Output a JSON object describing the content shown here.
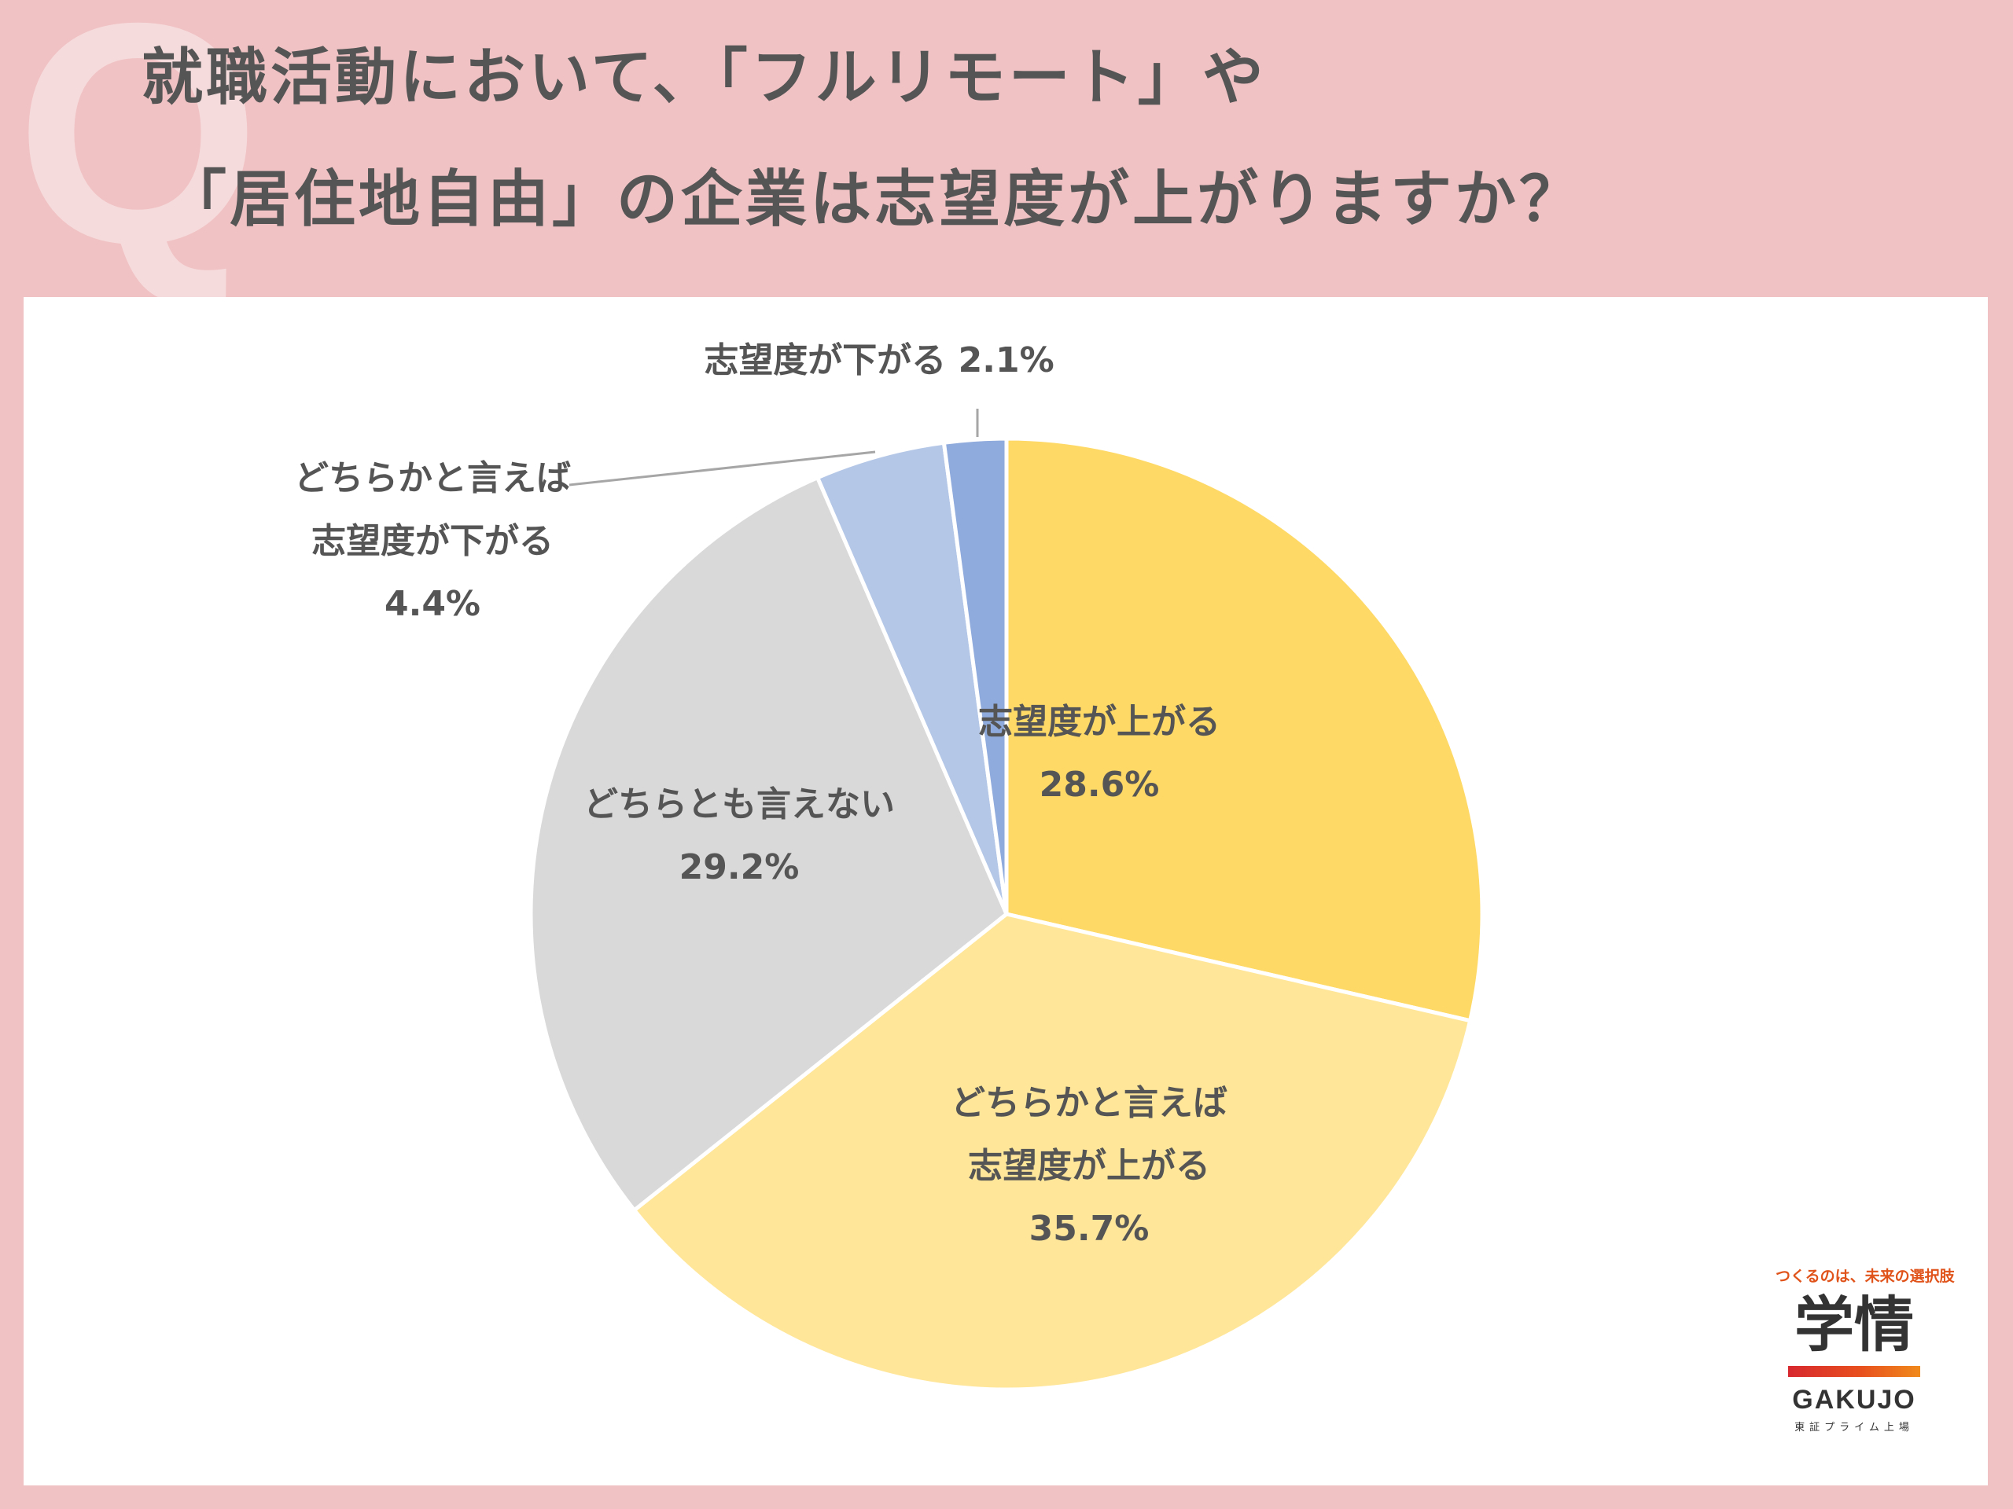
{
  "header": {
    "q_mark": "Q",
    "title_line1": "就職活動において、「フルリモート」や",
    "title_line2": "「居住地自由」の企業は志望度が上がりますか？"
  },
  "chart_data": {
    "type": "pie",
    "title": "",
    "slices": [
      {
        "label_lines": [
          "志望度が上がる"
        ],
        "value": 28.6,
        "value_label": "28.6%",
        "color": "#ffd966"
      },
      {
        "label_lines": [
          "どちらかと言えば",
          "志望度が上がる"
        ],
        "value": 35.7,
        "value_label": "35.7%",
        "color": "#ffe699"
      },
      {
        "label_lines": [
          "どちらとも言えない"
        ],
        "value": 29.2,
        "value_label": "29.2%",
        "color": "#d9d9d9"
      },
      {
        "label_lines": [
          "どちらかと言えば",
          "志望度が下がる"
        ],
        "value": 4.4,
        "value_label": "4.4%",
        "color": "#b4c7e7"
      },
      {
        "label_lines": [
          "志望度が下がる"
        ],
        "value": 2.1,
        "value_label": "2.1%",
        "color": "#8faadc"
      }
    ],
    "start_angle": "12 o'clock",
    "direction": "clockwise",
    "legend": "none"
  },
  "logo": {
    "tagline": "つくるのは、未来の選択肢",
    "kanji": "学情",
    "roman": "GAKUJO",
    "sub": "東証プライム上場"
  }
}
